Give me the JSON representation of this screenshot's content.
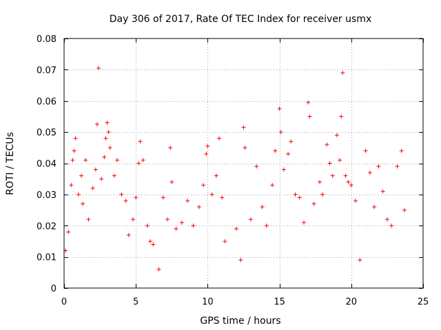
{
  "colors": {
    "series": "#ff0000",
    "axes": "#000000",
    "grid": "#a0a0a0",
    "background": "#ffffff"
  },
  "chart_data": {
    "type": "scatter",
    "title": "Day 306 of 2017, Rate Of TEC Index for receiver usmx",
    "xlabel": "GPS time / hours",
    "ylabel": "ROTI / TECUs",
    "xlim": [
      0,
      25
    ],
    "ylim": [
      0,
      0.08
    ],
    "xticks": [
      0,
      5,
      10,
      15,
      20,
      25
    ],
    "xtick_labels": [
      "0",
      "5",
      "10",
      "15",
      "20",
      "25"
    ],
    "yticks": [
      0,
      0.01,
      0.02,
      0.03,
      0.04,
      0.05,
      0.06,
      0.07,
      0.08
    ],
    "ytick_labels": [
      "0",
      "0.01",
      "0.02",
      "0.03",
      "0.04",
      "0.05",
      "0.06",
      "0.07",
      "0.08"
    ],
    "grid": true,
    "marker": "+",
    "series": [
      {
        "name": "ROTI",
        "color": "#ff0000",
        "points": [
          [
            0.1,
            0.012
          ],
          [
            0.3,
            0.018
          ],
          [
            0.5,
            0.033
          ],
          [
            0.6,
            0.041
          ],
          [
            0.7,
            0.044
          ],
          [
            0.8,
            0.048
          ],
          [
            1.0,
            0.03
          ],
          [
            1.2,
            0.036
          ],
          [
            1.3,
            0.027
          ],
          [
            1.5,
            0.041
          ],
          [
            1.7,
            0.022
          ],
          [
            2.0,
            0.032
          ],
          [
            2.2,
            0.038
          ],
          [
            2.3,
            0.0525
          ],
          [
            2.4,
            0.0705
          ],
          [
            2.6,
            0.035
          ],
          [
            2.8,
            0.042
          ],
          [
            2.9,
            0.048
          ],
          [
            3.0,
            0.053
          ],
          [
            3.1,
            0.05
          ],
          [
            3.2,
            0.045
          ],
          [
            3.5,
            0.036
          ],
          [
            3.7,
            0.041
          ],
          [
            4.0,
            0.03
          ],
          [
            4.3,
            0.028
          ],
          [
            4.5,
            0.017
          ],
          [
            4.8,
            0.022
          ],
          [
            5.0,
            0.029
          ],
          [
            5.2,
            0.04
          ],
          [
            5.3,
            0.047
          ],
          [
            5.5,
            0.041
          ],
          [
            5.8,
            0.02
          ],
          [
            6.0,
            0.015
          ],
          [
            6.2,
            0.014
          ],
          [
            6.6,
            0.006
          ],
          [
            6.9,
            0.029
          ],
          [
            7.2,
            0.022
          ],
          [
            7.4,
            0.045
          ],
          [
            7.5,
            0.034
          ],
          [
            7.8,
            0.019
          ],
          [
            8.2,
            0.021
          ],
          [
            8.6,
            0.028
          ],
          [
            9.0,
            0.02
          ],
          [
            9.4,
            0.026
          ],
          [
            9.7,
            0.033
          ],
          [
            9.9,
            0.043
          ],
          [
            10.0,
            0.0455
          ],
          [
            10.3,
            0.03
          ],
          [
            10.6,
            0.036
          ],
          [
            10.8,
            0.048
          ],
          [
            11.0,
            0.029
          ],
          [
            11.2,
            0.015
          ],
          [
            12.0,
            0.019
          ],
          [
            12.3,
            0.009
          ],
          [
            12.5,
            0.0515
          ],
          [
            12.6,
            0.045
          ],
          [
            13.0,
            0.022
          ],
          [
            13.4,
            0.039
          ],
          [
            13.8,
            0.026
          ],
          [
            14.1,
            0.02
          ],
          [
            14.5,
            0.033
          ],
          [
            14.7,
            0.044
          ],
          [
            15.0,
            0.0575
          ],
          [
            15.1,
            0.05
          ],
          [
            15.3,
            0.038
          ],
          [
            15.6,
            0.043
          ],
          [
            15.8,
            0.047
          ],
          [
            16.1,
            0.03
          ],
          [
            16.4,
            0.029
          ],
          [
            16.7,
            0.021
          ],
          [
            17.0,
            0.0595
          ],
          [
            17.1,
            0.055
          ],
          [
            17.4,
            0.027
          ],
          [
            17.8,
            0.034
          ],
          [
            18.0,
            0.03
          ],
          [
            18.3,
            0.046
          ],
          [
            18.5,
            0.04
          ],
          [
            18.7,
            0.036
          ],
          [
            19.0,
            0.049
          ],
          [
            19.2,
            0.041
          ],
          [
            19.3,
            0.055
          ],
          [
            19.4,
            0.069
          ],
          [
            19.6,
            0.036
          ],
          [
            19.8,
            0.034
          ],
          [
            20.0,
            0.033
          ],
          [
            20.3,
            0.028
          ],
          [
            20.6,
            0.009
          ],
          [
            21.0,
            0.044
          ],
          [
            21.3,
            0.037
          ],
          [
            21.6,
            0.026
          ],
          [
            21.9,
            0.039
          ],
          [
            22.2,
            0.031
          ],
          [
            22.5,
            0.022
          ],
          [
            22.8,
            0.02
          ],
          [
            23.2,
            0.039
          ],
          [
            23.5,
            0.044
          ],
          [
            23.7,
            0.025
          ]
        ]
      }
    ]
  }
}
